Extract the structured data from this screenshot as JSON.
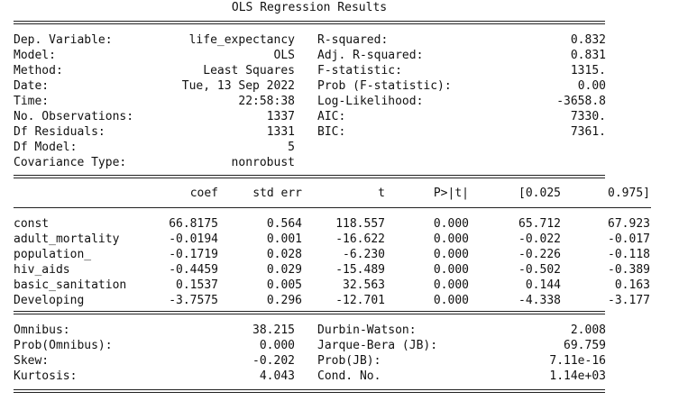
{
  "title": "OLS Regression Results",
  "top_left": [
    {
      "label": "Dep. Variable:",
      "value": "life_expectancy"
    },
    {
      "label": "Model:",
      "value": "OLS"
    },
    {
      "label": "Method:",
      "value": "Least Squares"
    },
    {
      "label": "Date:",
      "value": "Tue, 13 Sep 2022"
    },
    {
      "label": "Time:",
      "value": "22:58:38"
    },
    {
      "label": "No. Observations:",
      "value": "1337"
    },
    {
      "label": "Df Residuals:",
      "value": "1331"
    },
    {
      "label": "Df Model:",
      "value": "5"
    },
    {
      "label": "Covariance Type:",
      "value": "nonrobust"
    }
  ],
  "top_right": [
    {
      "label": "R-squared:",
      "value": "0.832"
    },
    {
      "label": "Adj. R-squared:",
      "value": "0.831"
    },
    {
      "label": "F-statistic:",
      "value": "1315."
    },
    {
      "label": "Prob (F-statistic):",
      "value": "0.00"
    },
    {
      "label": "Log-Likelihood:",
      "value": "-3658.8"
    },
    {
      "label": "AIC:",
      "value": "7330."
    },
    {
      "label": "BIC:",
      "value": "7361."
    }
  ],
  "coef_headers": [
    "coef",
    "std err",
    "t",
    "P>|t|",
    "[0.025",
    "0.975]"
  ],
  "coef_rows": [
    {
      "name": "const",
      "cells": [
        "66.8175",
        "0.564",
        "118.557",
        "0.000",
        "65.712",
        "67.923"
      ]
    },
    {
      "name": "adult_mortality",
      "cells": [
        "-0.0194",
        "0.001",
        "-16.622",
        "0.000",
        "-0.022",
        "-0.017"
      ]
    },
    {
      "name": "population_",
      "cells": [
        "-0.1719",
        "0.028",
        "-6.230",
        "0.000",
        "-0.226",
        "-0.118"
      ]
    },
    {
      "name": "hiv_aids",
      "cells": [
        "-0.4459",
        "0.029",
        "-15.489",
        "0.000",
        "-0.502",
        "-0.389"
      ]
    },
    {
      "name": "basic_sanitation",
      "cells": [
        "0.1537",
        "0.005",
        "32.563",
        "0.000",
        "0.144",
        "0.163"
      ]
    },
    {
      "name": "Developing",
      "cells": [
        "-3.7575",
        "0.296",
        "-12.701",
        "0.000",
        "-4.338",
        "-3.177"
      ]
    }
  ],
  "bottom_left": [
    {
      "label": "Omnibus:",
      "value": "38.215"
    },
    {
      "label": "Prob(Omnibus):",
      "value": "0.000"
    },
    {
      "label": "Skew:",
      "value": "-0.202"
    },
    {
      "label": "Kurtosis:",
      "value": "4.043"
    }
  ],
  "bottom_right": [
    {
      "label": "Durbin-Watson:",
      "value": "2.008"
    },
    {
      "label": "Jarque-Bera (JB):",
      "value": "69.759"
    },
    {
      "label": "Prob(JB):",
      "value": "7.11e-16"
    },
    {
      "label": "Cond. No.",
      "value": "1.14e+03"
    }
  ]
}
